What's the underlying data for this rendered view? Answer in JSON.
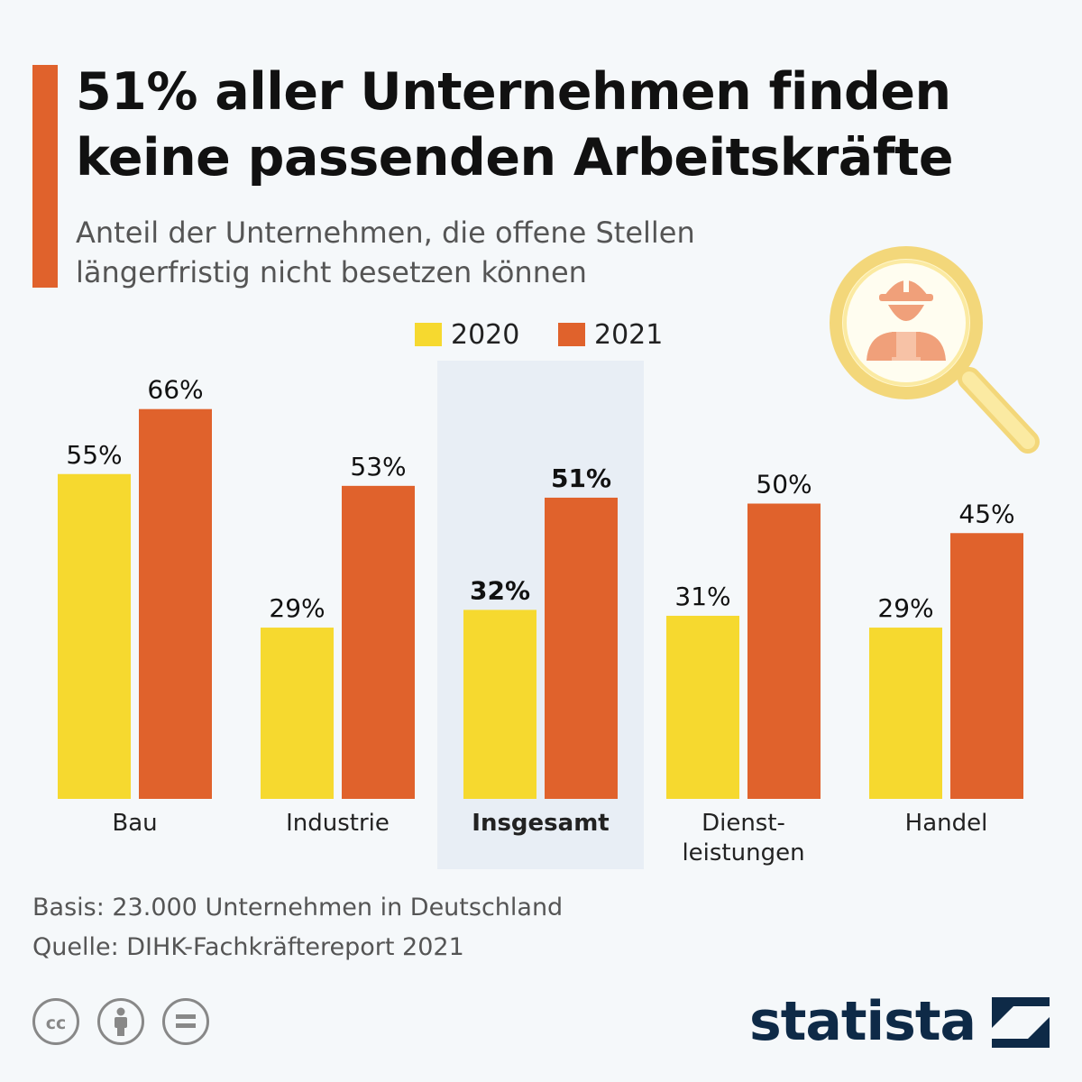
{
  "title": "51% aller Unternehmen finden keine passenden Arbeitskräfte",
  "subtitle": "Anteil der Unternehmen, die offene Stellen längerfristig nicht besetzen können",
  "legend": [
    {
      "label": "2020",
      "color": "#f6d92f"
    },
    {
      "label": "2021",
      "color": "#e0622c"
    }
  ],
  "chart_data": {
    "type": "bar",
    "categories": [
      "Bau",
      "Industrie",
      "Insgesamt",
      "Dienst-\nleistungen",
      "Handel"
    ],
    "highlighted_category": "Insgesamt",
    "series": [
      {
        "name": "2020",
        "values": [
          55,
          29,
          32,
          31,
          29
        ],
        "color": "#f6d92f"
      },
      {
        "name": "2021",
        "values": [
          66,
          53,
          51,
          50,
          45
        ],
        "color": "#e0622c"
      }
    ],
    "value_suffix": "%",
    "ylim": [
      0,
      100
    ],
    "grid": false,
    "legend_position": "top-center"
  },
  "footer": {
    "basis": "Basis: 23.000 Unternehmen in Deutschland",
    "source": "Quelle: DIHK-Fachkräftereport 2021"
  },
  "license_icons": [
    "creative-commons-icon",
    "attribution-icon",
    "no-derivatives-icon"
  ],
  "brand": "statista",
  "illustration_icon": "magnifying-glass-worker-icon"
}
